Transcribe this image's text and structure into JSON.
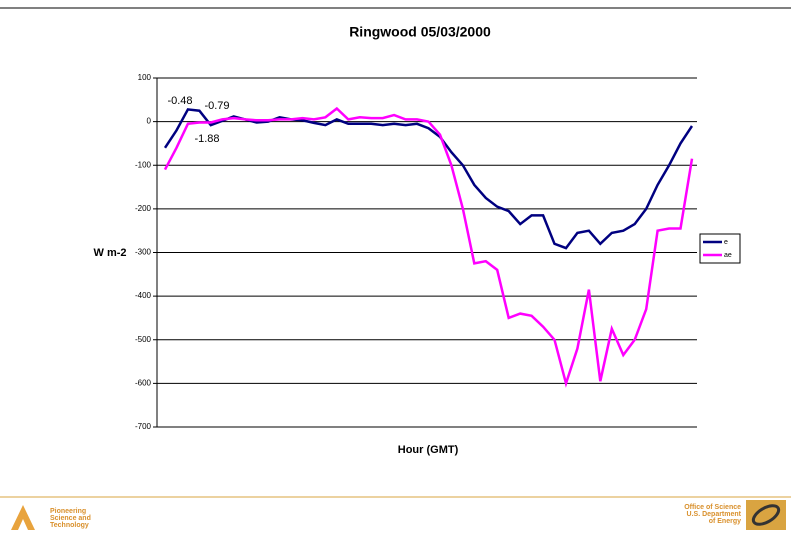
{
  "chart_data": {
    "type": "line",
    "title": "Ringwood 05/03/2000",
    "ylabel": "W m-2",
    "xlabel": "Hour (GMT)",
    "categories": [
      null,
      null,
      null,
      null,
      null,
      null,
      null,
      null,
      null,
      null,
      null,
      null,
      null,
      null,
      null,
      null,
      null,
      null,
      null,
      null,
      null,
      null,
      null,
      null,
      null,
      null,
      null,
      null,
      null,
      null,
      null,
      null,
      null,
      null,
      null,
      null,
      null,
      null,
      null,
      null,
      null,
      null,
      null,
      null,
      null,
      null,
      null
    ],
    "series": [
      {
        "name": "e",
        "color": "#000080",
        "values": [
          -60,
          -20,
          28,
          25,
          -8,
          2,
          12,
          5,
          -2,
          0,
          10,
          5,
          3,
          -3,
          -8,
          5,
          -5,
          -5,
          -5,
          -8,
          -5,
          -8,
          -5,
          -15,
          -35,
          -70,
          -100,
          -145,
          -175,
          -195,
          -205,
          -235,
          -215,
          -215,
          -280,
          -290,
          -255,
          -250,
          -280,
          -255,
          -250,
          -235,
          -200,
          -145,
          -100,
          -50,
          -10
        ]
      },
      {
        "name": "ae",
        "color": "#ff00ff",
        "values": [
          -110,
          -60,
          -5,
          -2,
          -2,
          5,
          8,
          5,
          3,
          3,
          5,
          5,
          8,
          5,
          10,
          30,
          5,
          10,
          8,
          8,
          15,
          5,
          5,
          0,
          -30,
          -100,
          -200,
          -325,
          -320,
          -340,
          -450,
          -440,
          -445,
          -470,
          -500,
          -600,
          -520,
          -385,
          -595,
          -475,
          -535,
          -500,
          -430,
          -250,
          -245,
          -245,
          -85
        ]
      }
    ],
    "annotations": [
      "-0.48",
      "-0.79",
      "-1.88"
    ],
    "ylim": [
      -700,
      100
    ],
    "yticks": [
      100,
      0,
      -100,
      -200,
      -300,
      -400,
      -500,
      -600,
      -700
    ],
    "grid": true,
    "legend": "right"
  },
  "footer": {
    "left": [
      "Pioneering",
      "Science and",
      "Technology"
    ],
    "right": [
      "Office of Science",
      "U.S. Department",
      "of Energy"
    ]
  }
}
